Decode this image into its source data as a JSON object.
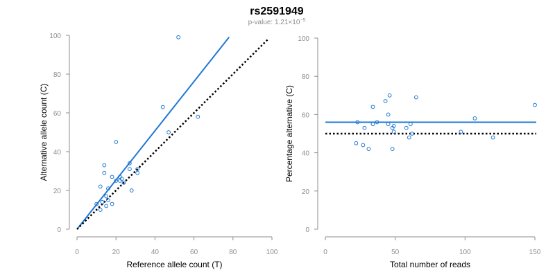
{
  "title": "rs2591949",
  "subtitle": {
    "prefix": "p-value: 1.21×10",
    "exponent": "−5"
  },
  "colors": {
    "points": "#1f77d4",
    "fit": "#1f77d4",
    "reference": "#000000",
    "axis": "#8c8c8c"
  },
  "chart_data": [
    {
      "type": "scatter",
      "xlabel": "Reference allele count (T)",
      "ylabel": "Alternative allele count (C)",
      "xlim": [
        0,
        100
      ],
      "ylim": [
        0,
        100
      ],
      "xticks": [
        "0",
        "20",
        "40",
        "60",
        "80",
        "100"
      ],
      "yticks": [
        "0",
        "20",
        "40",
        "60",
        "80",
        "100"
      ],
      "grid": false,
      "points": [
        {
          "x": 52,
          "y": 99
        },
        {
          "x": 44,
          "y": 63
        },
        {
          "x": 62,
          "y": 58
        },
        {
          "x": 47,
          "y": 50
        },
        {
          "x": 20,
          "y": 45
        },
        {
          "x": 14,
          "y": 33
        },
        {
          "x": 27,
          "y": 34
        },
        {
          "x": 31,
          "y": 31
        },
        {
          "x": 27,
          "y": 31
        },
        {
          "x": 14,
          "y": 29
        },
        {
          "x": 31,
          "y": 29
        },
        {
          "x": 18,
          "y": 27
        },
        {
          "x": 22,
          "y": 27
        },
        {
          "x": 23,
          "y": 26
        },
        {
          "x": 22,
          "y": 25
        },
        {
          "x": 20,
          "y": 25
        },
        {
          "x": 24,
          "y": 24
        },
        {
          "x": 12,
          "y": 22
        },
        {
          "x": 16,
          "y": 21
        },
        {
          "x": 28,
          "y": 20
        },
        {
          "x": 15,
          "y": 17
        },
        {
          "x": 16,
          "y": 15
        },
        {
          "x": 13,
          "y": 14
        },
        {
          "x": 10,
          "y": 13
        },
        {
          "x": 18,
          "y": 13
        },
        {
          "x": 15,
          "y": 12
        },
        {
          "x": 12,
          "y": 10
        }
      ],
      "lines": [
        {
          "kind": "fit",
          "x": [
            0,
            78
          ],
          "y": [
            0,
            99
          ]
        },
        {
          "kind": "reference",
          "x": [
            0,
            98
          ],
          "y": [
            0,
            98
          ]
        }
      ]
    },
    {
      "type": "scatter",
      "xlabel": "Total number of reads",
      "ylabel": "Percentage alternative (C)",
      "xlim": [
        0,
        150
      ],
      "ylim": [
        0,
        100
      ],
      "xticks": [
        "0",
        "50",
        "100",
        "150"
      ],
      "yticks": [
        "0",
        "20",
        "40",
        "60",
        "80",
        "100"
      ],
      "grid": false,
      "points": [
        {
          "x": 46,
          "y": 70
        },
        {
          "x": 65,
          "y": 69
        },
        {
          "x": 43,
          "y": 67
        },
        {
          "x": 150,
          "y": 65
        },
        {
          "x": 34,
          "y": 64
        },
        {
          "x": 45,
          "y": 60
        },
        {
          "x": 107,
          "y": 58
        },
        {
          "x": 37,
          "y": 56
        },
        {
          "x": 23,
          "y": 56
        },
        {
          "x": 34,
          "y": 55
        },
        {
          "x": 45,
          "y": 55
        },
        {
          "x": 61,
          "y": 55
        },
        {
          "x": 49,
          "y": 54
        },
        {
          "x": 48,
          "y": 53
        },
        {
          "x": 28,
          "y": 53
        },
        {
          "x": 58,
          "y": 53
        },
        {
          "x": 97,
          "y": 51
        },
        {
          "x": 49,
          "y": 51
        },
        {
          "x": 62,
          "y": 50
        },
        {
          "x": 120,
          "y": 48
        },
        {
          "x": 60,
          "y": 48
        },
        {
          "x": 22,
          "y": 45
        },
        {
          "x": 27,
          "y": 44
        },
        {
          "x": 31,
          "y": 42
        },
        {
          "x": 48,
          "y": 42
        }
      ],
      "lines": [
        {
          "kind": "fit",
          "x": [
            0,
            151
          ],
          "y": [
            56,
            56
          ]
        },
        {
          "kind": "reference",
          "x": [
            0,
            151
          ],
          "y": [
            50,
            50
          ]
        }
      ]
    }
  ]
}
